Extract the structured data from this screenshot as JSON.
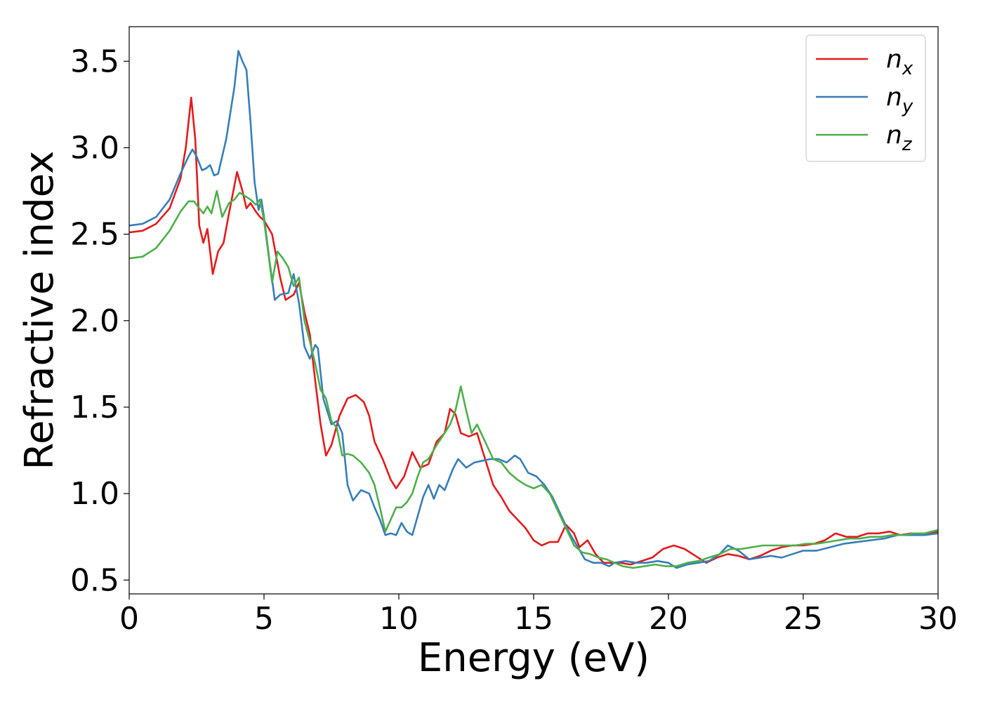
{
  "chart_data": {
    "type": "line",
    "xlabel": "Energy (eV)",
    "ylabel": "Refractive index",
    "xlim": [
      0,
      30
    ],
    "ylim": [
      0.42,
      3.7
    ],
    "xticks": [
      0,
      5,
      10,
      15,
      20,
      25,
      30
    ],
    "xtick_labels": [
      "0",
      "5",
      "10",
      "15",
      "20",
      "25",
      "30"
    ],
    "yticks": [
      0.5,
      1.0,
      1.5,
      2.0,
      2.5,
      3.0,
      3.5
    ],
    "ytick_labels": [
      "0.5",
      "1.0",
      "1.5",
      "2.0",
      "2.5",
      "3.0",
      "3.5"
    ],
    "grid": false,
    "legend_position": "top-right",
    "series": [
      {
        "name": "n_x",
        "label_base": "n",
        "label_sub": "x",
        "color": "#e41a1c",
        "points": [
          [
            0,
            2.51
          ],
          [
            0.5,
            2.52
          ],
          [
            1.0,
            2.56
          ],
          [
            1.5,
            2.65
          ],
          [
            1.9,
            2.82
          ],
          [
            2.1,
            3.0
          ],
          [
            2.3,
            3.29
          ],
          [
            2.45,
            3.05
          ],
          [
            2.6,
            2.55
          ],
          [
            2.75,
            2.45
          ],
          [
            2.9,
            2.53
          ],
          [
            3.1,
            2.27
          ],
          [
            3.3,
            2.4
          ],
          [
            3.5,
            2.45
          ],
          [
            3.7,
            2.62
          ],
          [
            4.0,
            2.86
          ],
          [
            4.2,
            2.75
          ],
          [
            4.35,
            2.65
          ],
          [
            4.5,
            2.68
          ],
          [
            4.7,
            2.63
          ],
          [
            4.85,
            2.6
          ],
          [
            5.0,
            2.58
          ],
          [
            5.3,
            2.5
          ],
          [
            5.6,
            2.25
          ],
          [
            5.8,
            2.12
          ],
          [
            6.1,
            2.15
          ],
          [
            6.3,
            2.22
          ],
          [
            6.5,
            2.05
          ],
          [
            6.7,
            1.92
          ],
          [
            6.9,
            1.65
          ],
          [
            7.1,
            1.4
          ],
          [
            7.3,
            1.22
          ],
          [
            7.5,
            1.28
          ],
          [
            7.8,
            1.45
          ],
          [
            8.1,
            1.55
          ],
          [
            8.4,
            1.57
          ],
          [
            8.7,
            1.53
          ],
          [
            8.9,
            1.45
          ],
          [
            9.1,
            1.3
          ],
          [
            9.4,
            1.2
          ],
          [
            9.7,
            1.08
          ],
          [
            9.9,
            1.03
          ],
          [
            10.2,
            1.1
          ],
          [
            10.5,
            1.24
          ],
          [
            10.8,
            1.15
          ],
          [
            11.1,
            1.17
          ],
          [
            11.4,
            1.3
          ],
          [
            11.7,
            1.35
          ],
          [
            11.9,
            1.49
          ],
          [
            12.1,
            1.46
          ],
          [
            12.3,
            1.35
          ],
          [
            12.6,
            1.33
          ],
          [
            12.9,
            1.35
          ],
          [
            13.2,
            1.2
          ],
          [
            13.5,
            1.05
          ],
          [
            13.8,
            0.98
          ],
          [
            14.1,
            0.9
          ],
          [
            14.4,
            0.85
          ],
          [
            14.7,
            0.8
          ],
          [
            15.0,
            0.73
          ],
          [
            15.3,
            0.7
          ],
          [
            15.6,
            0.72
          ],
          [
            15.9,
            0.72
          ],
          [
            16.2,
            0.82
          ],
          [
            16.5,
            0.77
          ],
          [
            16.7,
            0.69
          ],
          [
            17.0,
            0.73
          ],
          [
            17.3,
            0.65
          ],
          [
            17.6,
            0.6
          ],
          [
            17.9,
            0.6
          ],
          [
            18.2,
            0.6
          ],
          [
            18.6,
            0.59
          ],
          [
            19.0,
            0.61
          ],
          [
            19.4,
            0.63
          ],
          [
            19.8,
            0.68
          ],
          [
            20.2,
            0.7
          ],
          [
            20.6,
            0.68
          ],
          [
            21.0,
            0.64
          ],
          [
            21.4,
            0.6
          ],
          [
            21.8,
            0.63
          ],
          [
            22.2,
            0.65
          ],
          [
            22.6,
            0.64
          ],
          [
            23.0,
            0.62
          ],
          [
            23.4,
            0.64
          ],
          [
            23.8,
            0.67
          ],
          [
            24.2,
            0.69
          ],
          [
            24.6,
            0.7
          ],
          [
            25.0,
            0.7
          ],
          [
            25.4,
            0.71
          ],
          [
            25.8,
            0.73
          ],
          [
            26.2,
            0.77
          ],
          [
            26.6,
            0.75
          ],
          [
            27.0,
            0.75
          ],
          [
            27.4,
            0.77
          ],
          [
            27.8,
            0.77
          ],
          [
            28.2,
            0.78
          ],
          [
            28.6,
            0.76
          ],
          [
            29.0,
            0.77
          ],
          [
            29.4,
            0.76
          ],
          [
            29.7,
            0.77
          ],
          [
            30.0,
            0.78
          ]
        ]
      },
      {
        "name": "n_y",
        "label_base": "n",
        "label_sub": "y",
        "color": "#377eb8",
        "points": [
          [
            0,
            2.55
          ],
          [
            0.5,
            2.56
          ],
          [
            1.0,
            2.6
          ],
          [
            1.5,
            2.7
          ],
          [
            1.9,
            2.85
          ],
          [
            2.2,
            2.95
          ],
          [
            2.35,
            2.99
          ],
          [
            2.5,
            2.95
          ],
          [
            2.7,
            2.87
          ],
          [
            2.85,
            2.88
          ],
          [
            3.0,
            2.9
          ],
          [
            3.15,
            2.84
          ],
          [
            3.3,
            2.85
          ],
          [
            3.6,
            3.05
          ],
          [
            3.9,
            3.35
          ],
          [
            4.05,
            3.56
          ],
          [
            4.2,
            3.5
          ],
          [
            4.35,
            3.45
          ],
          [
            4.5,
            3.15
          ],
          [
            4.65,
            2.8
          ],
          [
            4.8,
            2.64
          ],
          [
            4.9,
            2.7
          ],
          [
            5.0,
            2.6
          ],
          [
            5.2,
            2.35
          ],
          [
            5.4,
            2.12
          ],
          [
            5.6,
            2.15
          ],
          [
            5.9,
            2.16
          ],
          [
            6.1,
            2.27
          ],
          [
            6.3,
            2.1
          ],
          [
            6.5,
            1.85
          ],
          [
            6.7,
            1.78
          ],
          [
            6.9,
            1.86
          ],
          [
            7.0,
            1.84
          ],
          [
            7.2,
            1.55
          ],
          [
            7.5,
            1.4
          ],
          [
            7.7,
            1.42
          ],
          [
            7.9,
            1.35
          ],
          [
            8.1,
            1.05
          ],
          [
            8.3,
            0.96
          ],
          [
            8.6,
            1.02
          ],
          [
            8.9,
            1.0
          ],
          [
            9.1,
            0.92
          ],
          [
            9.3,
            0.85
          ],
          [
            9.5,
            0.76
          ],
          [
            9.7,
            0.77
          ],
          [
            9.9,
            0.76
          ],
          [
            10.1,
            0.83
          ],
          [
            10.3,
            0.78
          ],
          [
            10.5,
            0.76
          ],
          [
            10.7,
            0.87
          ],
          [
            10.9,
            0.98
          ],
          [
            11.1,
            1.05
          ],
          [
            11.3,
            0.97
          ],
          [
            11.5,
            1.05
          ],
          [
            11.7,
            1.02
          ],
          [
            12.0,
            1.14
          ],
          [
            12.2,
            1.2
          ],
          [
            12.5,
            1.15
          ],
          [
            12.8,
            1.18
          ],
          [
            13.1,
            1.19
          ],
          [
            13.4,
            1.2
          ],
          [
            13.7,
            1.2
          ],
          [
            14.0,
            1.18
          ],
          [
            14.3,
            1.22
          ],
          [
            14.5,
            1.2
          ],
          [
            14.8,
            1.12
          ],
          [
            15.1,
            1.1
          ],
          [
            15.4,
            1.05
          ],
          [
            15.7,
            0.98
          ],
          [
            16.0,
            0.88
          ],
          [
            16.3,
            0.78
          ],
          [
            16.6,
            0.7
          ],
          [
            16.9,
            0.62
          ],
          [
            17.2,
            0.6
          ],
          [
            17.5,
            0.6
          ],
          [
            17.8,
            0.58
          ],
          [
            18.0,
            0.6
          ],
          [
            18.4,
            0.61
          ],
          [
            18.8,
            0.6
          ],
          [
            19.2,
            0.6
          ],
          [
            19.6,
            0.61
          ],
          [
            20.0,
            0.6
          ],
          [
            20.3,
            0.57
          ],
          [
            20.7,
            0.59
          ],
          [
            21.1,
            0.6
          ],
          [
            21.5,
            0.61
          ],
          [
            21.9,
            0.65
          ],
          [
            22.2,
            0.7
          ],
          [
            22.6,
            0.67
          ],
          [
            23.0,
            0.62
          ],
          [
            23.4,
            0.63
          ],
          [
            23.8,
            0.64
          ],
          [
            24.2,
            0.63
          ],
          [
            24.6,
            0.65
          ],
          [
            25.0,
            0.67
          ],
          [
            25.5,
            0.67
          ],
          [
            26.0,
            0.69
          ],
          [
            26.5,
            0.71
          ],
          [
            27.0,
            0.72
          ],
          [
            27.5,
            0.73
          ],
          [
            28.0,
            0.74
          ],
          [
            28.5,
            0.76
          ],
          [
            29.0,
            0.76
          ],
          [
            29.5,
            0.76
          ],
          [
            30.0,
            0.77
          ]
        ]
      },
      {
        "name": "n_z",
        "label_base": "n",
        "label_sub": "z",
        "color": "#4daf4a",
        "points": [
          [
            0,
            2.36
          ],
          [
            0.5,
            2.37
          ],
          [
            1.0,
            2.42
          ],
          [
            1.5,
            2.52
          ],
          [
            1.9,
            2.63
          ],
          [
            2.2,
            2.69
          ],
          [
            2.4,
            2.69
          ],
          [
            2.6,
            2.65
          ],
          [
            2.75,
            2.62
          ],
          [
            2.9,
            2.66
          ],
          [
            3.05,
            2.62
          ],
          [
            3.25,
            2.75
          ],
          [
            3.45,
            2.6
          ],
          [
            3.7,
            2.68
          ],
          [
            3.9,
            2.7
          ],
          [
            4.1,
            2.74
          ],
          [
            4.3,
            2.72
          ],
          [
            4.5,
            2.7
          ],
          [
            4.7,
            2.67
          ],
          [
            4.85,
            2.7
          ],
          [
            5.0,
            2.58
          ],
          [
            5.15,
            2.4
          ],
          [
            5.3,
            2.22
          ],
          [
            5.5,
            2.4
          ],
          [
            5.7,
            2.36
          ],
          [
            5.9,
            2.31
          ],
          [
            6.1,
            2.2
          ],
          [
            6.3,
            2.25
          ],
          [
            6.5,
            2.0
          ],
          [
            6.7,
            1.88
          ],
          [
            6.9,
            1.75
          ],
          [
            7.1,
            1.6
          ],
          [
            7.3,
            1.55
          ],
          [
            7.5,
            1.42
          ],
          [
            7.7,
            1.38
          ],
          [
            7.9,
            1.22
          ],
          [
            8.1,
            1.23
          ],
          [
            8.3,
            1.22
          ],
          [
            8.6,
            1.18
          ],
          [
            8.9,
            1.12
          ],
          [
            9.1,
            1.05
          ],
          [
            9.3,
            0.92
          ],
          [
            9.5,
            0.78
          ],
          [
            9.7,
            0.85
          ],
          [
            9.9,
            0.92
          ],
          [
            10.1,
            0.92
          ],
          [
            10.3,
            0.95
          ],
          [
            10.5,
            1.0
          ],
          [
            10.7,
            1.1
          ],
          [
            10.9,
            1.18
          ],
          [
            11.1,
            1.2
          ],
          [
            11.4,
            1.28
          ],
          [
            11.7,
            1.35
          ],
          [
            11.9,
            1.4
          ],
          [
            12.1,
            1.48
          ],
          [
            12.3,
            1.62
          ],
          [
            12.5,
            1.48
          ],
          [
            12.7,
            1.35
          ],
          [
            12.9,
            1.4
          ],
          [
            13.2,
            1.3
          ],
          [
            13.5,
            1.2
          ],
          [
            13.8,
            1.18
          ],
          [
            14.1,
            1.12
          ],
          [
            14.4,
            1.08
          ],
          [
            14.7,
            1.05
          ],
          [
            15.0,
            1.03
          ],
          [
            15.3,
            1.05
          ],
          [
            15.6,
            1.0
          ],
          [
            15.9,
            0.9
          ],
          [
            16.2,
            0.8
          ],
          [
            16.5,
            0.7
          ],
          [
            16.8,
            0.66
          ],
          [
            17.1,
            0.65
          ],
          [
            17.4,
            0.63
          ],
          [
            17.7,
            0.62
          ],
          [
            18.0,
            0.6
          ],
          [
            18.3,
            0.58
          ],
          [
            18.7,
            0.57
          ],
          [
            19.1,
            0.58
          ],
          [
            19.5,
            0.59
          ],
          [
            19.9,
            0.58
          ],
          [
            20.3,
            0.58
          ],
          [
            20.7,
            0.6
          ],
          [
            21.1,
            0.61
          ],
          [
            21.5,
            0.63
          ],
          [
            21.9,
            0.65
          ],
          [
            22.3,
            0.68
          ],
          [
            22.7,
            0.68
          ],
          [
            23.1,
            0.69
          ],
          [
            23.5,
            0.7
          ],
          [
            23.9,
            0.7
          ],
          [
            24.3,
            0.7
          ],
          [
            24.7,
            0.7
          ],
          [
            25.1,
            0.71
          ],
          [
            25.5,
            0.71
          ],
          [
            25.9,
            0.72
          ],
          [
            26.3,
            0.73
          ],
          [
            26.7,
            0.74
          ],
          [
            27.1,
            0.74
          ],
          [
            27.5,
            0.75
          ],
          [
            27.9,
            0.75
          ],
          [
            28.3,
            0.76
          ],
          [
            28.7,
            0.76
          ],
          [
            29.1,
            0.77
          ],
          [
            29.5,
            0.77
          ],
          [
            30.0,
            0.79
          ]
        ]
      }
    ]
  }
}
